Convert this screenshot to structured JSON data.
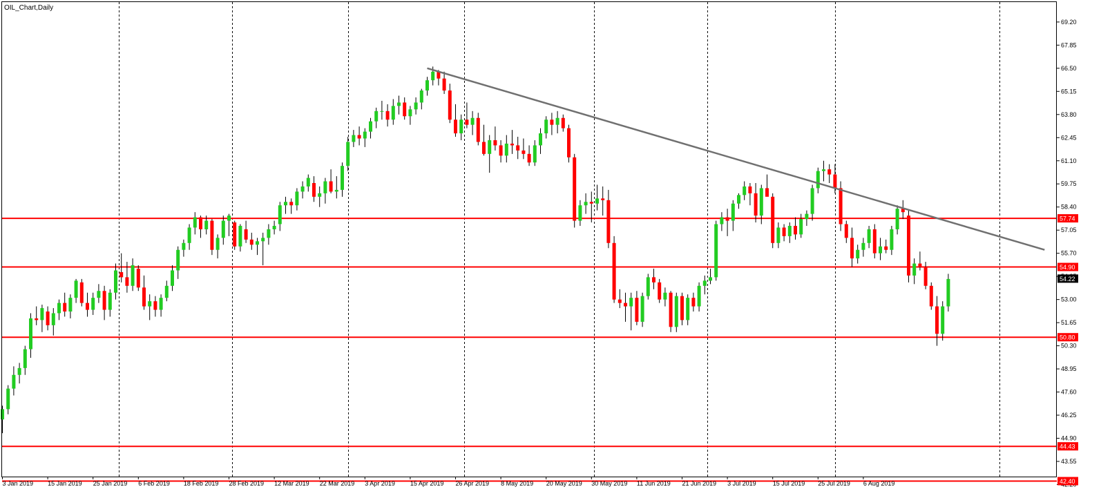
{
  "chart_title": "OIL_Chart,Daily",
  "colors": {
    "background": "#ffffff",
    "frame": "#000000",
    "bull": "#22cc22",
    "bear": "#ff0000",
    "wick": "#000000",
    "resistance": "#ff0000",
    "trendline": "#707070",
    "current_badge_bg": "#000000",
    "current_badge_text": "#ffffff",
    "level_badge_bg": "#ff0000",
    "level_badge_text": "#ffffff"
  },
  "chart_data": {
    "type": "candlestick",
    "title": "OIL_Chart,Daily",
    "timeframe": "Daily",
    "xlabel": "",
    "ylabel": "",
    "ylim": [
      42.2,
      69.9
    ],
    "grid": "vertical-dotted",
    "price_axis_position": "right",
    "price_ticks": [
      "69.20",
      "67.85",
      "66.50",
      "65.15",
      "63.80",
      "62.45",
      "61.10",
      "59.75",
      "58.40",
      "57.05",
      "55.70",
      "54.35",
      "53.00",
      "51.65",
      "50.30",
      "48.95",
      "47.60",
      "46.25",
      "44.90",
      "43.55",
      "42.20"
    ],
    "date_ticks": [
      {
        "label": "3 Jan 2019",
        "index": 0
      },
      {
        "label": "15 Jan 2019",
        "index": 8
      },
      {
        "label": "25 Jan 2019",
        "index": 16
      },
      {
        "label": "6 Feb 2019",
        "index": 24
      },
      {
        "label": "18 Feb 2019",
        "index": 32
      },
      {
        "label": "28 Feb 2019",
        "index": 40
      },
      {
        "label": "12 Mar 2019",
        "index": 48
      },
      {
        "label": "22 Mar 2019",
        "index": 56
      },
      {
        "label": "3 Apr 2019",
        "index": 64
      },
      {
        "label": "15 Apr 2019",
        "index": 72
      },
      {
        "label": "26 Apr 2019",
        "index": 80
      },
      {
        "label": "8 May 2019",
        "index": 88
      },
      {
        "label": "20 May 2019",
        "index": 96
      },
      {
        "label": "30 May 2019",
        "index": 104
      },
      {
        "label": "11 Jun 2019",
        "index": 112
      },
      {
        "label": "21 Jun 2019",
        "index": 120
      },
      {
        "label": "3 Jul 2019",
        "index": 128
      },
      {
        "label": "15 Jul 2019",
        "index": 136
      },
      {
        "label": "25 Jul 2019",
        "index": 144
      },
      {
        "label": "6 Aug 2019",
        "index": 152
      }
    ],
    "vertical_gridline_indices": [
      20.5,
      40.5,
      61,
      81.5,
      104.5,
      124.5,
      147,
      176
    ],
    "horizontal_levels": [
      {
        "value": 57.74,
        "label": "57.74"
      },
      {
        "value": 54.9,
        "label": "54.90"
      },
      {
        "value": 50.8,
        "label": "50.80"
      },
      {
        "value": 44.43,
        "label": "44.43"
      },
      {
        "value": 42.4,
        "label": "42.40"
      }
    ],
    "current_price": {
      "value": 54.22,
      "label": "54.22"
    },
    "trendline": {
      "start": {
        "index": 75,
        "price": 66.5
      },
      "end": {
        "index": 184,
        "price": 55.9
      }
    },
    "candles": [
      [
        46.0,
        46.8,
        45.2,
        46.6
      ],
      [
        46.6,
        48.0,
        46.3,
        47.8
      ],
      [
        47.8,
        49.1,
        47.4,
        48.6
      ],
      [
        48.6,
        49.3,
        48.1,
        49.0
      ],
      [
        49.0,
        50.3,
        48.6,
        50.1
      ],
      [
        50.1,
        52.2,
        49.6,
        51.9
      ],
      [
        51.9,
        52.6,
        51.5,
        51.8
      ],
      [
        51.8,
        52.7,
        51.1,
        52.5
      ],
      [
        52.3,
        52.6,
        51.2,
        51.5
      ],
      [
        51.5,
        52.5,
        50.9,
        52.2
      ],
      [
        52.2,
        53.0,
        51.8,
        52.8
      ],
      [
        52.8,
        53.4,
        52.0,
        52.3
      ],
      [
        52.3,
        53.3,
        51.9,
        53.1
      ],
      [
        53.1,
        54.2,
        52.8,
        54.1
      ],
      [
        54.0,
        54.2,
        52.6,
        52.8
      ],
      [
        52.8,
        53.4,
        52.0,
        52.4
      ],
      [
        52.4,
        53.4,
        52.1,
        53.1
      ],
      [
        53.1,
        53.9,
        52.8,
        53.5
      ],
      [
        53.5,
        53.8,
        51.8,
        52.4
      ],
      [
        52.4,
        53.6,
        52.0,
        53.4
      ],
      [
        53.4,
        55.1,
        53.0,
        54.7
      ],
      [
        54.6,
        55.7,
        54.0,
        54.3
      ],
      [
        54.3,
        55.2,
        53.4,
        53.8
      ],
      [
        53.8,
        55.4,
        53.5,
        55.0
      ],
      [
        54.8,
        55.0,
        53.5,
        53.7
      ],
      [
        53.7,
        54.4,
        52.4,
        52.6
      ],
      [
        52.6,
        53.3,
        51.8,
        52.9
      ],
      [
        52.9,
        53.2,
        52.0,
        52.4
      ],
      [
        52.4,
        53.3,
        52.0,
        53.1
      ],
      [
        53.1,
        54.1,
        52.9,
        53.8
      ],
      [
        53.8,
        55.0,
        53.5,
        54.7
      ],
      [
        54.7,
        56.1,
        54.2,
        55.9
      ],
      [
        55.9,
        56.5,
        55.5,
        56.3
      ],
      [
        56.3,
        57.4,
        55.9,
        57.2
      ],
      [
        57.2,
        58.1,
        56.8,
        57.8
      ],
      [
        57.8,
        57.9,
        56.6,
        57.1
      ],
      [
        57.1,
        57.9,
        56.8,
        57.6
      ],
      [
        57.6,
        57.7,
        55.6,
        55.9
      ],
      [
        55.9,
        56.8,
        55.4,
        56.6
      ],
      [
        56.6,
        57.9,
        56.2,
        57.6
      ],
      [
        57.6,
        58.0,
        56.7,
        57.9
      ],
      [
        57.5,
        57.6,
        55.9,
        56.1
      ],
      [
        56.1,
        57.4,
        55.8,
        57.3
      ],
      [
        57.1,
        57.6,
        56.3,
        56.5
      ],
      [
        56.5,
        56.9,
        55.9,
        56.2
      ],
      [
        56.2,
        56.6,
        55.6,
        56.4
      ],
      [
        56.4,
        56.9,
        55.0,
        56.6
      ],
      [
        56.6,
        57.4,
        56.2,
        57.1
      ],
      [
        57.1,
        57.6,
        56.8,
        57.3
      ],
      [
        57.4,
        58.7,
        57.0,
        58.5
      ],
      [
        58.5,
        59.0,
        58.0,
        58.7
      ],
      [
        58.7,
        58.9,
        58.0,
        58.5
      ],
      [
        58.5,
        59.5,
        58.2,
        59.3
      ],
      [
        59.3,
        59.9,
        58.9,
        59.6
      ],
      [
        59.6,
        60.3,
        59.3,
        60.1
      ],
      [
        59.8,
        60.2,
        58.7,
        59.0
      ],
      [
        59.0,
        59.6,
        58.4,
        59.2
      ],
      [
        59.2,
        60.1,
        58.6,
        59.9
      ],
      [
        59.9,
        60.6,
        59.2,
        59.3
      ],
      [
        59.3,
        60.2,
        58.9,
        59.4
      ],
      [
        59.4,
        61.0,
        59.0,
        60.8
      ],
      [
        60.8,
        62.5,
        60.5,
        62.2
      ],
      [
        62.2,
        62.9,
        61.9,
        62.6
      ],
      [
        62.6,
        63.1,
        62.0,
        62.4
      ],
      [
        62.4,
        63.0,
        61.9,
        62.8
      ],
      [
        62.8,
        63.6,
        62.4,
        63.4
      ],
      [
        63.4,
        64.2,
        63.0,
        64.0
      ],
      [
        64.0,
        64.6,
        63.5,
        64.0
      ],
      [
        64.0,
        64.4,
        63.1,
        63.5
      ],
      [
        63.5,
        64.7,
        63.2,
        64.3
      ],
      [
        64.3,
        64.9,
        63.8,
        64.5
      ],
      [
        64.5,
        64.8,
        63.5,
        63.7
      ],
      [
        63.7,
        64.3,
        63.2,
        64.1
      ],
      [
        64.1,
        64.8,
        63.8,
        64.5
      ],
      [
        64.5,
        65.3,
        64.1,
        65.2
      ],
      [
        65.2,
        66.0,
        64.9,
        65.8
      ],
      [
        65.8,
        66.6,
        65.5,
        66.3
      ],
      [
        66.3,
        66.4,
        65.5,
        65.9
      ],
      [
        65.9,
        66.3,
        65.0,
        65.2
      ],
      [
        65.2,
        65.6,
        63.3,
        63.5
      ],
      [
        63.5,
        64.4,
        62.5,
        62.7
      ],
      [
        62.7,
        63.8,
        62.3,
        63.5
      ],
      [
        63.5,
        64.5,
        63.0,
        63.2
      ],
      [
        63.2,
        64.0,
        62.6,
        63.6
      ],
      [
        63.6,
        63.9,
        62.0,
        62.2
      ],
      [
        62.2,
        63.2,
        61.4,
        61.5
      ],
      [
        61.5,
        62.6,
        60.4,
        62.3
      ],
      [
        62.3,
        63.1,
        61.7,
        62.0
      ],
      [
        62.0,
        62.3,
        61.0,
        61.4
      ],
      [
        61.4,
        62.6,
        61.0,
        62.1
      ],
      [
        62.1,
        62.9,
        61.5,
        62.0
      ],
      [
        62.0,
        62.5,
        61.2,
        61.7
      ],
      [
        61.7,
        62.4,
        61.2,
        61.5
      ],
      [
        61.5,
        62.0,
        60.8,
        61.0
      ],
      [
        61.0,
        62.3,
        60.8,
        62.0
      ],
      [
        62.0,
        63.0,
        61.5,
        62.7
      ],
      [
        62.7,
        63.7,
        62.4,
        63.5
      ],
      [
        63.5,
        63.9,
        62.6,
        63.2
      ],
      [
        63.2,
        64.0,
        62.7,
        63.6
      ],
      [
        63.6,
        63.8,
        62.8,
        63.0
      ],
      [
        63.0,
        63.2,
        61.0,
        61.3
      ],
      [
        61.3,
        61.5,
        57.2,
        57.6
      ],
      [
        57.6,
        58.8,
        57.3,
        58.5
      ],
      [
        58.5,
        59.2,
        58.0,
        58.7
      ],
      [
        58.7,
        59.3,
        57.5,
        58.6
      ],
      [
        58.6,
        59.7,
        58.2,
        58.9
      ],
      [
        58.9,
        59.6,
        57.9,
        58.8
      ],
      [
        58.8,
        59.4,
        56.0,
        56.3
      ],
      [
        56.3,
        56.7,
        52.8,
        53.0
      ],
      [
        53.0,
        53.6,
        52.5,
        52.8
      ],
      [
        52.8,
        53.4,
        51.7,
        52.6
      ],
      [
        52.6,
        53.4,
        51.2,
        53.1
      ],
      [
        53.1,
        53.5,
        51.5,
        51.7
      ],
      [
        51.7,
        53.4,
        51.4,
        53.2
      ],
      [
        53.2,
        54.5,
        53.0,
        54.3
      ],
      [
        54.3,
        54.8,
        53.6,
        54.0
      ],
      [
        54.0,
        54.2,
        52.8,
        53.0
      ],
      [
        53.0,
        53.7,
        52.6,
        53.4
      ],
      [
        53.4,
        53.5,
        51.1,
        51.4
      ],
      [
        51.4,
        53.4,
        51.1,
        53.2
      ],
      [
        53.2,
        53.4,
        51.5,
        51.8
      ],
      [
        51.8,
        53.3,
        51.5,
        53.1
      ],
      [
        53.1,
        53.4,
        52.3,
        52.6
      ],
      [
        52.6,
        54.0,
        52.3,
        53.8
      ],
      [
        53.8,
        54.4,
        53.3,
        54.1
      ],
      [
        54.1,
        54.8,
        53.9,
        54.3
      ],
      [
        54.3,
        57.6,
        54.1,
        57.4
      ],
      [
        57.4,
        58.1,
        57.0,
        57.8
      ],
      [
        57.8,
        58.3,
        56.7,
        57.6
      ],
      [
        57.6,
        58.8,
        57.0,
        58.6
      ],
      [
        58.6,
        59.2,
        58.3,
        59.1
      ],
      [
        59.1,
        59.9,
        58.8,
        59.6
      ],
      [
        59.6,
        59.8,
        58.5,
        59.2
      ],
      [
        59.2,
        59.8,
        57.5,
        57.9
      ],
      [
        57.9,
        59.7,
        57.4,
        59.5
      ],
      [
        59.5,
        60.3,
        59.1,
        59.0
      ],
      [
        59.0,
        59.2,
        56.0,
        56.3
      ],
      [
        56.3,
        57.5,
        56.0,
        57.2
      ],
      [
        57.2,
        57.4,
        56.4,
        56.7
      ],
      [
        56.7,
        57.5,
        56.3,
        57.3
      ],
      [
        57.3,
        57.8,
        56.5,
        56.8
      ],
      [
        56.8,
        58.0,
        56.6,
        57.7
      ],
      [
        57.7,
        58.2,
        57.3,
        58.0
      ],
      [
        58.0,
        59.7,
        57.6,
        59.5
      ],
      [
        59.5,
        60.7,
        59.2,
        60.5
      ],
      [
        60.5,
        61.1,
        59.9,
        60.6
      ],
      [
        60.6,
        60.9,
        59.8,
        60.3
      ],
      [
        60.3,
        60.9,
        59.2,
        59.5
      ],
      [
        59.5,
        59.9,
        57.0,
        57.4
      ],
      [
        57.4,
        57.6,
        56.3,
        56.6
      ],
      [
        56.6,
        57.2,
        54.9,
        55.4
      ],
      [
        55.4,
        56.2,
        55.1,
        55.9
      ],
      [
        55.9,
        56.6,
        55.5,
        56.3
      ],
      [
        56.3,
        57.3,
        56.0,
        57.1
      ],
      [
        57.1,
        57.4,
        55.4,
        55.7
      ],
      [
        55.7,
        56.6,
        55.3,
        56.1
      ],
      [
        56.1,
        56.5,
        55.7,
        55.9
      ],
      [
        55.9,
        57.3,
        55.6,
        57.1
      ],
      [
        57.1,
        58.5,
        56.8,
        58.3
      ],
      [
        58.3,
        58.8,
        57.7,
        58.1
      ],
      [
        57.9,
        58.2,
        54.0,
        54.4
      ],
      [
        54.4,
        55.4,
        53.9,
        55.1
      ],
      [
        55.1,
        55.8,
        54.7,
        54.9
      ],
      [
        54.9,
        55.2,
        53.6,
        53.8
      ],
      [
        53.8,
        54.0,
        52.4,
        52.6
      ],
      [
        52.6,
        53.2,
        50.3,
        51.0
      ],
      [
        51.0,
        52.9,
        50.6,
        52.6
      ],
      [
        52.6,
        54.5,
        52.3,
        54.2
      ]
    ]
  }
}
